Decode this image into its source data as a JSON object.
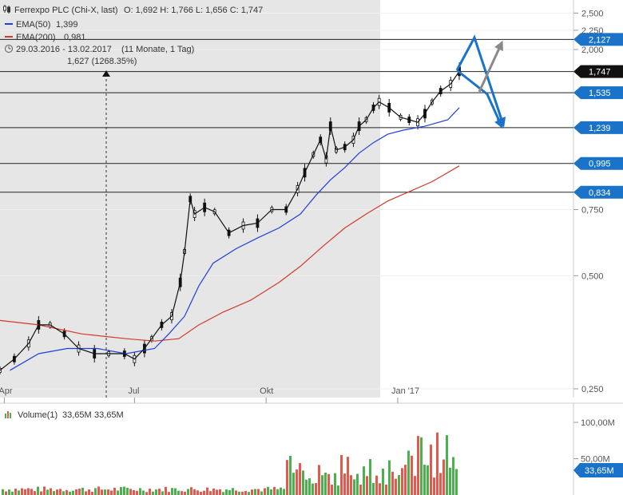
{
  "legend": {
    "title": "Ferrexpo PLC (Chi-X, last)",
    "ohlc": "O: 1,692  H: 1,766  L: 1,656  C: 1,747",
    "ema50_label": "EMA(50)",
    "ema50_value": "1,399",
    "ema200_label": "EMA(200)",
    "ema200_value": "0,981",
    "range": "29.03.2016 - 13.02.2017",
    "period": "(11 Monate, 1 Tag)"
  },
  "annotation": {
    "text": "1,627 (1268.35%)"
  },
  "volume": {
    "label": "Volume(1)",
    "value1": "33,65M",
    "value2": "33,65M",
    "ticks": [
      {
        "value": 100,
        "label": "100,00M"
      },
      {
        "value": 50,
        "label": "50,00M"
      }
    ],
    "tag": "33,65M"
  },
  "colors": {
    "ema50": "#1f3fd8",
    "ema200": "#d03a2a",
    "level_tag": "#1a73c8",
    "price_tag": "#111111",
    "vol_up": "#4caf50",
    "vol_down": "#e05a4f",
    "arrow_blue": "#1a73c8",
    "arrow_gray": "#8a8a8a",
    "shade": "#e6e6e6"
  },
  "chart_data": {
    "type": "line",
    "title": "Ferrexpo PLC (Chi-X, last)",
    "x_tick_labels": [
      "Apr",
      "Jul",
      "Okt",
      "Jan '17"
    ],
    "y_scale": "log",
    "y_ticks": [
      {
        "value": 2.5,
        "label": "2,500"
      },
      {
        "value": 2.25,
        "label": "2,250"
      },
      {
        "value": 2.0,
        "label": "2,000"
      },
      {
        "value": 0.75,
        "label": "0,750"
      },
      {
        "value": 0.5,
        "label": "0,500"
      },
      {
        "value": 0.25,
        "label": "0,250"
      }
    ],
    "horizontal_levels": [
      {
        "value": 2.127,
        "label": "2,127",
        "style": "blue"
      },
      {
        "value": 1.747,
        "label": "1,747",
        "style": "black"
      },
      {
        "value": 1.535,
        "label": "1,535",
        "style": "blue"
      },
      {
        "value": 1.239,
        "label": "1,239",
        "style": "blue"
      },
      {
        "value": 0.995,
        "label": "0,995",
        "style": "blue"
      },
      {
        "value": 0.834,
        "label": "0,834",
        "style": "blue"
      }
    ],
    "series": [
      {
        "name": "Ferrexpo PLC",
        "points": [
          [
            "2016-03-29",
            0.28
          ],
          [
            "2016-04-08",
            0.3
          ],
          [
            "2016-04-18",
            0.33
          ],
          [
            "2016-04-25",
            0.37
          ],
          [
            "2016-05-03",
            0.37
          ],
          [
            "2016-05-13",
            0.35
          ],
          [
            "2016-05-23",
            0.32
          ],
          [
            "2016-06-03",
            0.31
          ],
          [
            "2016-06-13",
            0.31
          ],
          [
            "2016-06-24",
            0.31
          ],
          [
            "2016-07-01",
            0.3
          ],
          [
            "2016-07-08",
            0.32
          ],
          [
            "2016-07-13",
            0.34
          ],
          [
            "2016-07-20",
            0.37
          ],
          [
            "2016-07-27",
            0.39
          ],
          [
            "2016-08-02",
            0.48
          ],
          [
            "2016-08-05",
            0.58
          ],
          [
            "2016-08-09",
            0.8
          ],
          [
            "2016-08-12",
            0.73
          ],
          [
            "2016-08-19",
            0.76
          ],
          [
            "2016-08-26",
            0.74
          ],
          [
            "2016-09-05",
            0.65
          ],
          [
            "2016-09-15",
            0.68
          ],
          [
            "2016-09-25",
            0.69
          ],
          [
            "2016-10-05",
            0.75
          ],
          [
            "2016-10-15",
            0.75
          ],
          [
            "2016-10-23",
            0.85
          ],
          [
            "2016-10-28",
            0.94
          ],
          [
            "2016-11-03",
            1.05
          ],
          [
            "2016-11-08",
            1.15
          ],
          [
            "2016-11-12",
            1.02
          ],
          [
            "2016-11-15",
            1.25
          ],
          [
            "2016-11-19",
            1.08
          ],
          [
            "2016-11-25",
            1.1
          ],
          [
            "2016-12-01",
            1.15
          ],
          [
            "2016-12-05",
            1.25
          ],
          [
            "2016-12-10",
            1.3
          ],
          [
            "2016-12-15",
            1.4
          ],
          [
            "2016-12-19",
            1.45
          ],
          [
            "2016-12-26",
            1.4
          ],
          [
            "2017-01-03",
            1.32
          ],
          [
            "2017-01-09",
            1.3
          ],
          [
            "2017-01-15",
            1.28
          ],
          [
            "2017-01-20",
            1.35
          ],
          [
            "2017-01-25",
            1.45
          ],
          [
            "2017-01-31",
            1.55
          ],
          [
            "2017-02-07",
            1.62
          ],
          [
            "2017-02-13",
            1.75
          ]
        ]
      },
      {
        "name": "EMA(50)",
        "points": [
          [
            "2016-04-05",
            0.28
          ],
          [
            "2016-04-25",
            0.31
          ],
          [
            "2016-05-15",
            0.32
          ],
          [
            "2016-06-05",
            0.32
          ],
          [
            "2016-06-25",
            0.31
          ],
          [
            "2016-07-15",
            0.32
          ],
          [
            "2016-07-25",
            0.35
          ],
          [
            "2016-08-05",
            0.39
          ],
          [
            "2016-08-15",
            0.47
          ],
          [
            "2016-08-25",
            0.54
          ],
          [
            "2016-09-10",
            0.59
          ],
          [
            "2016-09-25",
            0.63
          ],
          [
            "2016-10-10",
            0.67
          ],
          [
            "2016-10-25",
            0.73
          ],
          [
            "2016-11-05",
            0.82
          ],
          [
            "2016-11-15",
            0.9
          ],
          [
            "2016-11-25",
            0.97
          ],
          [
            "2016-12-05",
            1.06
          ],
          [
            "2016-12-15",
            1.13
          ],
          [
            "2016-12-25",
            1.19
          ],
          [
            "2017-01-05",
            1.22
          ],
          [
            "2017-01-20",
            1.25
          ],
          [
            "2017-02-05",
            1.3
          ],
          [
            "2017-02-13",
            1.4
          ]
        ]
      },
      {
        "name": "EMA(200)",
        "points": [
          [
            "2016-03-29",
            0.38
          ],
          [
            "2016-04-25",
            0.37
          ],
          [
            "2016-05-25",
            0.35
          ],
          [
            "2016-06-25",
            0.34
          ],
          [
            "2016-07-15",
            0.335
          ],
          [
            "2016-08-01",
            0.34
          ],
          [
            "2016-08-15",
            0.37
          ],
          [
            "2016-09-01",
            0.4
          ],
          [
            "2016-09-20",
            0.43
          ],
          [
            "2016-10-10",
            0.48
          ],
          [
            "2016-10-25",
            0.53
          ],
          [
            "2016-11-10",
            0.6
          ],
          [
            "2016-11-25",
            0.67
          ],
          [
            "2016-12-10",
            0.73
          ],
          [
            "2016-12-25",
            0.79
          ],
          [
            "2017-01-10",
            0.84
          ],
          [
            "2017-01-25",
            0.89
          ],
          [
            "2017-02-13",
            0.98
          ]
        ]
      }
    ]
  }
}
